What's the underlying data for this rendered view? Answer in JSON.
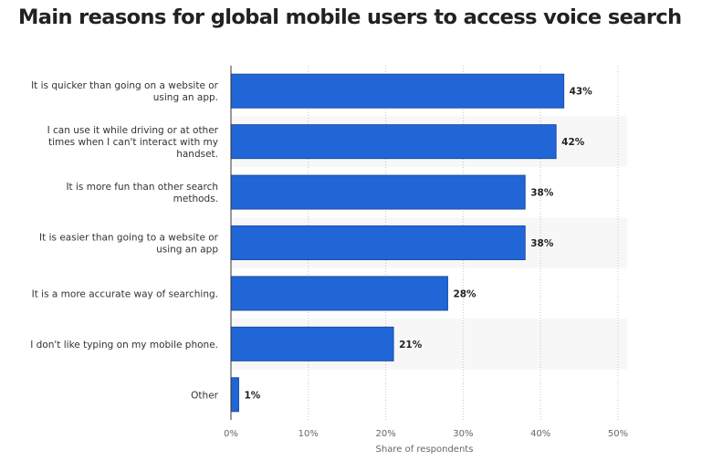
{
  "chart_data": {
    "type": "bar",
    "orientation": "horizontal",
    "title": "Main reasons for global mobile users to access voice search",
    "xlabel": "Share of respondents",
    "ylabel": "",
    "xlim": [
      0,
      50
    ],
    "x_ticks": [
      "0%",
      "10%",
      "20%",
      "30%",
      "40%",
      "50%"
    ],
    "grid": true,
    "categories": [
      [
        "It is quicker than going on a website or",
        "using an app."
      ],
      [
        "I can use it while driving or at other",
        "times when I can't interact with my",
        "handset."
      ],
      [
        "It is more fun than other search",
        "methods."
      ],
      [
        "It is easier than going to a website or",
        "using an app"
      ],
      [
        "It is a more accurate way of searching."
      ],
      [
        "I don't like typing on my mobile phone."
      ],
      [
        "Other"
      ]
    ],
    "values": [
      43,
      42,
      38,
      38,
      28,
      21,
      1
    ],
    "value_labels": [
      "43%",
      "42%",
      "38%",
      "38%",
      "28%",
      "21%",
      "1%"
    ],
    "bar_color": "#2166d6",
    "bar_border_color": "#1a4fa8",
    "stripe_color": "#f7f7f7"
  }
}
